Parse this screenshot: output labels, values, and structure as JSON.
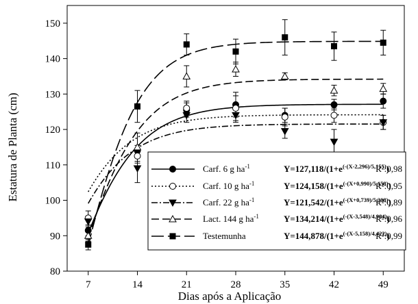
{
  "chart_data": {
    "type": "scatter",
    "xlabel": "Dias após a Aplicação",
    "ylabel": "Estatura de Planta (cm)",
    "x": [
      7,
      14,
      21,
      28,
      35,
      42,
      49
    ],
    "xlim": [
      4,
      52
    ],
    "ylim": [
      80,
      155
    ],
    "yticks": [
      80,
      90,
      100,
      110,
      120,
      130,
      140,
      150
    ],
    "grid": false,
    "legend_position": "bottom-right",
    "series": [
      {
        "name": "Carf. 6 g ha-1",
        "name_main": "Carf. 6 g ha",
        "name_sup": "-1",
        "marker": "filled-circle",
        "line": "solid",
        "y": [
          91.5,
          114,
          125.5,
          127,
          124,
          127,
          128
        ],
        "err": [
          1.5,
          1.5,
          2,
          3.5,
          2,
          1.5,
          2
        ],
        "fit": {
          "a": 127.118,
          "x0": 2.296,
          "b": 5.155
        },
        "eq_main": "Y=127,118/(1+e",
        "eq_exp": "(-(X-2,296)/5,155)",
        "eq_close": ")",
        "r2": "R²:0,98"
      },
      {
        "name": "Carf. 10 g ha-1",
        "name_main": "Carf. 10 g ha",
        "name_sup": "-1",
        "marker": "open-circle",
        "line": "dotted",
        "y": [
          95,
          112.5,
          126,
          126,
          123.5,
          124,
          122
        ],
        "err": [
          2,
          2,
          2,
          3.5,
          2.5,
          2,
          2
        ],
        "fit": {
          "a": 124.158,
          "x0": -0.99,
          "b": 5.158
        },
        "eq_main": "Y=124,158/(1+e",
        "eq_exp": "(-(X+0,990)/5,158)",
        "eq_close": ")",
        "r2": "R²:0,95"
      },
      {
        "name": "Carf. 22 g ha-1",
        "name_main": "Carf. 22 g ha",
        "name_sup": "-1",
        "marker": "filled-triangle-down",
        "line": "dash-dot",
        "y": [
          94,
          109,
          124,
          124,
          119.5,
          116.5,
          122
        ],
        "err": [
          1.5,
          4,
          2,
          2,
          2,
          3.5,
          2
        ],
        "fit": {
          "a": 121.542,
          "x0": -0.739,
          "b": 5.208
        },
        "eq_main": "Y=121,542/(1+e",
        "eq_exp": "(-(X+0,739)/5,208)",
        "eq_close": ")",
        "r2": "R²:0,89"
      },
      {
        "name": "Lact. 144 g ha-1",
        "name_main": "Lact. 144 g ha",
        "name_sup": "-1",
        "marker": "open-triangle-up",
        "line": "dashed",
        "y": [
          90,
          115,
          135,
          137,
          135,
          131,
          131.5
        ],
        "err": [
          1.5,
          4,
          3,
          2,
          1,
          1.5,
          1.5
        ],
        "fit": {
          "a": 134.214,
          "x0": 3.548,
          "b": 4.984
        },
        "eq_main": "Y=134,214/(1+e",
        "eq_exp": "(-(X-3,548)/4,984)",
        "eq_close": ")",
        "r2": "R²:0,96"
      },
      {
        "name": "Testemunha",
        "name_main": "Testemunha",
        "name_sup": "",
        "marker": "filled-square",
        "line": "long-dash",
        "y": [
          87.5,
          126.5,
          144,
          142,
          146,
          143.5,
          144.5
        ],
        "err": [
          1.5,
          4.5,
          3,
          3.5,
          5,
          4,
          3.5
        ],
        "fit": {
          "a": 144.878,
          "x0": 5.158,
          "b": 4.422
        },
        "eq_main": "Y=144,878/(1+e",
        "eq_exp": "(-(X-5,158)/4,422)",
        "eq_close": ")",
        "r2": "R²:0,99"
      }
    ]
  }
}
